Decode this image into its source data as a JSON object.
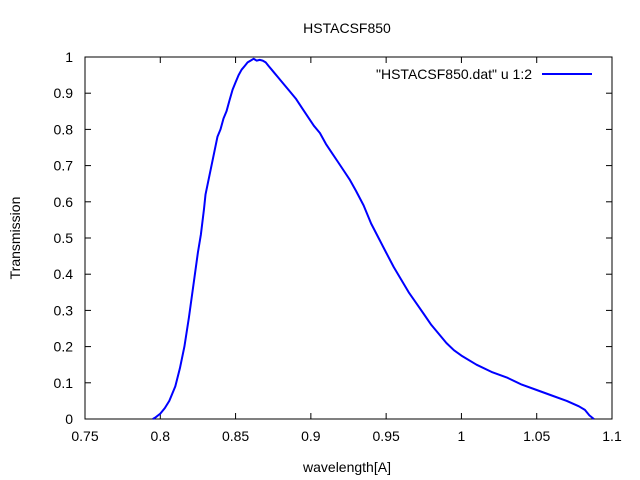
{
  "chart_data": {
    "type": "line",
    "title": "HSTACSF850",
    "xlabel": "wavelength[A]",
    "ylabel": "Transmission",
    "xlim": [
      0.75,
      1.1
    ],
    "ylim": [
      0,
      1
    ],
    "xticks": [
      "0.75",
      "0.8",
      "0.85",
      "0.9",
      "0.95",
      "1",
      "1.05",
      "1.1"
    ],
    "yticks": [
      "0",
      "0.1",
      "0.2",
      "0.3",
      "0.4",
      "0.5",
      "0.6",
      "0.7",
      "0.8",
      "0.9",
      "1"
    ],
    "grid": false,
    "legend_position": "top-right",
    "series": [
      {
        "name": "\"HSTACSF850.dat\" u 1:2",
        "color": "#0000ff",
        "x": [
          0.795,
          0.797,
          0.8,
          0.803,
          0.806,
          0.81,
          0.813,
          0.816,
          0.819,
          0.822,
          0.825,
          0.827,
          0.829,
          0.83,
          0.832,
          0.834,
          0.836,
          0.838,
          0.84,
          0.842,
          0.844,
          0.846,
          0.848,
          0.85,
          0.852,
          0.854,
          0.856,
          0.858,
          0.86,
          0.862,
          0.864,
          0.866,
          0.868,
          0.87,
          0.872,
          0.874,
          0.876,
          0.878,
          0.88,
          0.883,
          0.886,
          0.89,
          0.894,
          0.898,
          0.902,
          0.906,
          0.91,
          0.914,
          0.918,
          0.922,
          0.926,
          0.93,
          0.935,
          0.94,
          0.945,
          0.95,
          0.955,
          0.96,
          0.965,
          0.97,
          0.975,
          0.98,
          0.985,
          0.99,
          0.995,
          1.0,
          1.01,
          1.02,
          1.03,
          1.04,
          1.05,
          1.06,
          1.07,
          1.078,
          1.082,
          1.085,
          1.088
        ],
        "y": [
          0.0,
          0.005,
          0.015,
          0.03,
          0.05,
          0.09,
          0.14,
          0.2,
          0.28,
          0.37,
          0.46,
          0.51,
          0.58,
          0.62,
          0.66,
          0.7,
          0.74,
          0.78,
          0.8,
          0.83,
          0.85,
          0.88,
          0.91,
          0.93,
          0.95,
          0.965,
          0.975,
          0.985,
          0.99,
          0.995,
          0.99,
          0.992,
          0.99,
          0.985,
          0.975,
          0.965,
          0.955,
          0.945,
          0.935,
          0.92,
          0.905,
          0.885,
          0.86,
          0.835,
          0.81,
          0.79,
          0.76,
          0.735,
          0.71,
          0.685,
          0.66,
          0.63,
          0.59,
          0.54,
          0.5,
          0.46,
          0.42,
          0.385,
          0.35,
          0.32,
          0.29,
          0.26,
          0.235,
          0.21,
          0.19,
          0.175,
          0.15,
          0.13,
          0.115,
          0.095,
          0.08,
          0.065,
          0.05,
          0.035,
          0.025,
          0.01,
          0.0
        ]
      }
    ]
  }
}
